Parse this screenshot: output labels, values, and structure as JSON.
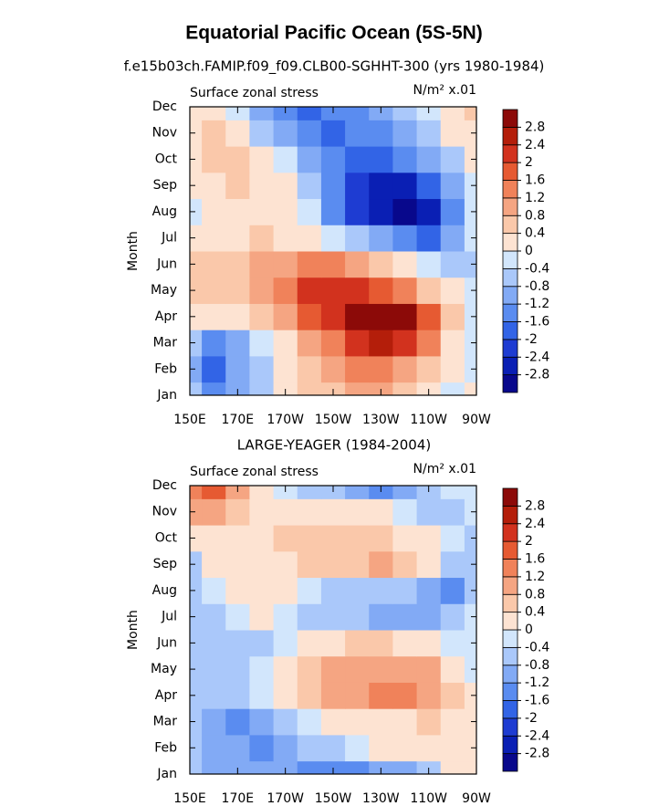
{
  "title": "Equatorial Pacific Ocean (5S-5N)",
  "chart_data": [
    {
      "type": "contour",
      "subtitle": "f.e15b03ch.FAMIP.f09_f09.CLB00-SGHHT-300 (yrs 1980-1984)",
      "left_label": "Surface zonal stress",
      "units": "N/m² x.01",
      "ylabel": "Month",
      "categories": [
        "Jan",
        "Feb",
        "Mar",
        "Apr",
        "May",
        "Jun",
        "Jul",
        "Aug",
        "Sep",
        "Oct",
        "Nov",
        "Dec"
      ],
      "x": [
        150,
        160,
        170,
        180,
        190,
        200,
        210,
        220,
        230,
        240,
        250,
        260,
        270
      ],
      "xlim": [
        150,
        270
      ],
      "xticks": [
        {
          "value": 150,
          "label": "150E"
        },
        {
          "value": 170,
          "label": "170E"
        },
        {
          "value": 190,
          "label": "170W"
        },
        {
          "value": 210,
          "label": "150W"
        },
        {
          "value": 230,
          "label": "130W"
        },
        {
          "value": 250,
          "label": "110W"
        },
        {
          "value": 270,
          "label": "90W"
        }
      ],
      "values": [
        [
          -0.4,
          -1.2,
          -0.8,
          -0.4,
          0.2,
          0.6,
          0.8,
          1.2,
          1.2,
          0.8,
          0.4,
          0,
          0.2
        ],
        [
          -0.8,
          -1.6,
          -0.8,
          -0.4,
          0.2,
          0.8,
          1.2,
          1.6,
          1.6,
          1.2,
          0.8,
          0.2,
          0
        ],
        [
          -0.4,
          -1.2,
          -0.8,
          -0.2,
          0.4,
          1.2,
          1.6,
          2.4,
          2.8,
          2.4,
          1.6,
          0.4,
          0
        ],
        [
          0.2,
          0.2,
          0.4,
          0.6,
          1.2,
          2.0,
          2.4,
          3.0,
          3.0,
          3.0,
          2.0,
          0.8,
          0
        ],
        [
          0.6,
          0.8,
          0.8,
          1.0,
          1.6,
          2.4,
          2.4,
          2.4,
          2.0,
          1.6,
          0.8,
          0.2,
          -0.2
        ],
        [
          0.6,
          0.8,
          0.8,
          1.0,
          1.2,
          1.6,
          1.6,
          1.2,
          0.8,
          0.4,
          -0.2,
          -0.6,
          -0.4
        ],
        [
          0.2,
          0.4,
          0.4,
          0.8,
          0.4,
          0.2,
          0,
          -0.4,
          -0.8,
          -1.2,
          -1.6,
          -0.8,
          -0.2
        ],
        [
          0,
          0.4,
          0.4,
          0.4,
          0.2,
          0,
          -1.2,
          -2.0,
          -2.4,
          -2.8,
          -2.4,
          -1.2,
          -0.2
        ],
        [
          0.2,
          0.4,
          0.6,
          0.4,
          0.2,
          -0.4,
          -1.2,
          -2.0,
          -2.4,
          -2.4,
          -1.6,
          -0.8,
          0
        ],
        [
          0.4,
          0.6,
          0.8,
          0.4,
          0,
          -0.8,
          -1.2,
          -1.6,
          -1.6,
          -1.2,
          -0.8,
          -0.4,
          0.2
        ],
        [
          0.4,
          0.6,
          0.2,
          -0.4,
          -0.8,
          -1.2,
          -1.6,
          -1.2,
          -1.2,
          -0.8,
          -0.4,
          0.2,
          0.4
        ],
        [
          0.4,
          0.4,
          -0.2,
          -0.8,
          -1.2,
          -1.6,
          -1.2,
          -1.2,
          -0.8,
          -0.4,
          -0.2,
          0.4,
          0.6
        ]
      ],
      "levels": [
        -2.8,
        -2.4,
        -2,
        -1.6,
        -1.2,
        -0.8,
        -0.4,
        0,
        0.4,
        0.8,
        1.2,
        1.6,
        2,
        2.4,
        2.8
      ],
      "colors": [
        "#08088c",
        "#0a1fb4",
        "#1e3cd2",
        "#3264e6",
        "#5a8cf0",
        "#82aaf5",
        "#aac8fa",
        "#d2e6fc",
        "#fde3d2",
        "#fac8aa",
        "#f5a582",
        "#f0825a",
        "#e65a32",
        "#d2321e",
        "#b41e0a",
        "#8c0a08"
      ]
    },
    {
      "type": "contour",
      "subtitle": "LARGE-YEAGER (1984-2004)",
      "left_label": "Surface zonal stress",
      "units": "N/m² x.01",
      "ylabel": "Month",
      "categories": [
        "Jan",
        "Feb",
        "Mar",
        "Apr",
        "May",
        "Jun",
        "Jul",
        "Aug",
        "Sep",
        "Oct",
        "Nov",
        "Dec"
      ],
      "x": [
        150,
        160,
        170,
        180,
        190,
        200,
        210,
        220,
        230,
        240,
        250,
        260,
        270
      ],
      "xlim": [
        150,
        270
      ],
      "xticks": [
        {
          "value": 150,
          "label": "150E"
        },
        {
          "value": 170,
          "label": "170E"
        },
        {
          "value": 190,
          "label": "170W"
        },
        {
          "value": 210,
          "label": "150W"
        },
        {
          "value": 230,
          "label": "130W"
        },
        {
          "value": 250,
          "label": "110W"
        },
        {
          "value": 270,
          "label": "90W"
        }
      ],
      "values": [
        [
          -0.4,
          -0.8,
          -0.8,
          -0.8,
          -0.8,
          -1.2,
          -1.2,
          -1.2,
          -0.8,
          -0.8,
          -0.4,
          0.2,
          0.2
        ],
        [
          -0.4,
          -0.8,
          -0.8,
          -1.2,
          -0.8,
          -0.4,
          -0.4,
          -0.2,
          0.2,
          0.2,
          0.2,
          0.2,
          0.2
        ],
        [
          -0.4,
          -0.8,
          -1.2,
          -0.8,
          -0.4,
          0,
          0.2,
          0.4,
          0.4,
          0.4,
          0.6,
          0.4,
          0.2
        ],
        [
          -0.4,
          -0.4,
          -0.4,
          -0.2,
          0.2,
          0.8,
          1.0,
          1.2,
          1.4,
          1.6,
          1.2,
          0.6,
          0.2
        ],
        [
          -0.4,
          -0.4,
          -0.4,
          -0.2,
          0.2,
          0.8,
          1.0,
          1.2,
          1.2,
          1.2,
          1.0,
          0.4,
          0
        ],
        [
          -0.4,
          -0.4,
          -0.4,
          -0.4,
          -0.2,
          0.2,
          0.4,
          0.6,
          0.6,
          0.4,
          0.2,
          0,
          -0.2
        ],
        [
          -0.4,
          -0.4,
          -0.2,
          0.2,
          0,
          -0.4,
          -0.4,
          -0.4,
          -0.8,
          -0.8,
          -0.8,
          -0.4,
          -0.2
        ],
        [
          -0.4,
          -0.2,
          0.2,
          0.4,
          0.2,
          0,
          -0.4,
          -0.4,
          -0.4,
          -0.4,
          -0.8,
          -1.2,
          -0.4
        ],
        [
          -0.4,
          0.2,
          0.4,
          0.4,
          0.4,
          0.6,
          0.6,
          0.8,
          1.2,
          0.6,
          0.2,
          -0.4,
          -0.4
        ],
        [
          0.4,
          0.2,
          0.2,
          0.4,
          0.6,
          0.8,
          0.8,
          0.8,
          0.6,
          0.4,
          0.2,
          -0.2,
          -0.4
        ],
        [
          1.2,
          1.2,
          0.8,
          0.2,
          0.2,
          0.2,
          0.2,
          0.2,
          0.2,
          0,
          -0.4,
          -0.4,
          -0.2
        ],
        [
          1.6,
          2.0,
          1.2,
          0.4,
          0,
          -0.4,
          -0.4,
          -0.8,
          -1.2,
          -0.8,
          -0.4,
          -0.2,
          0
        ]
      ],
      "levels": [
        -2.8,
        -2.4,
        -2,
        -1.6,
        -1.2,
        -0.8,
        -0.4,
        0,
        0.4,
        0.8,
        1.2,
        1.6,
        2,
        2.4,
        2.8
      ],
      "colors": [
        "#08088c",
        "#0a1fb4",
        "#1e3cd2",
        "#3264e6",
        "#5a8cf0",
        "#82aaf5",
        "#aac8fa",
        "#d2e6fc",
        "#fde3d2",
        "#fac8aa",
        "#f5a582",
        "#f0825a",
        "#e65a32",
        "#d2321e",
        "#b41e0a",
        "#8c0a08"
      ]
    }
  ]
}
